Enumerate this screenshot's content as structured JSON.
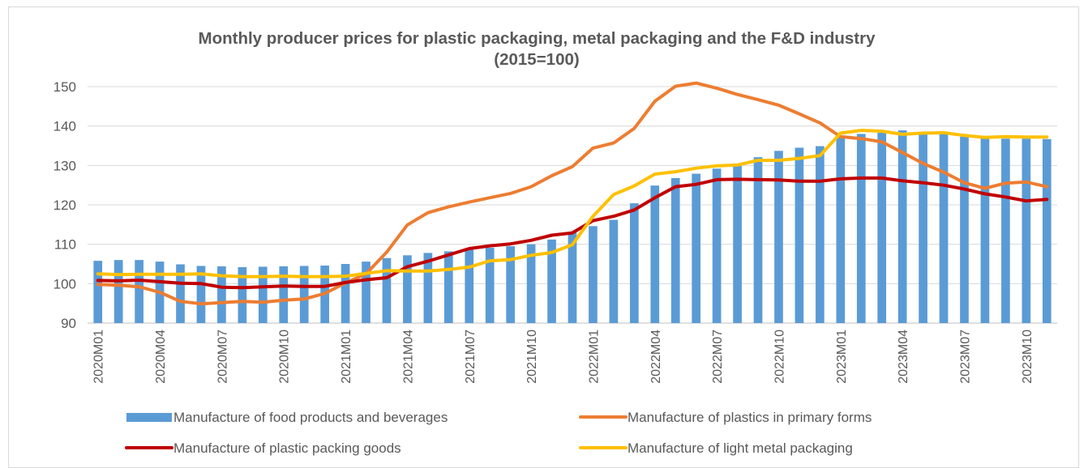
{
  "chart_data": {
    "type": "bar",
    "title": "Monthly producer prices for plastic packaging, metal packaging and the F&D industry",
    "subtitle": "(2015=100)",
    "ylim": [
      90,
      150
    ],
    "yticks": [
      90,
      100,
      110,
      120,
      130,
      140,
      150
    ],
    "grid": true,
    "legend_position": "bottom",
    "x": [
      "2020M01",
      "2020M02",
      "2020M03",
      "2020M04",
      "2020M05",
      "2020M06",
      "2020M07",
      "2020M08",
      "2020M09",
      "2020M10",
      "2020M11",
      "2020M12",
      "2021M01",
      "2021M02",
      "2021M03",
      "2021M04",
      "2021M05",
      "2021M06",
      "2021M07",
      "2021M08",
      "2021M09",
      "2021M10",
      "2021M11",
      "2021M12",
      "2022M01",
      "2022M02",
      "2022M03",
      "2022M04",
      "2022M05",
      "2022M06",
      "2022M07",
      "2022M08",
      "2022M09",
      "2022M10",
      "2022M11",
      "2022M12",
      "2023M01",
      "2023M02",
      "2023M03",
      "2023M04",
      "2023M05",
      "2023M06",
      "2023M07",
      "2023M08",
      "2023M09",
      "2023M10",
      "2023M11"
    ],
    "x_tick_labels": [
      "2020M01",
      "2020M04",
      "2020M07",
      "2020M10",
      "2021M01",
      "2021M04",
      "2021M07",
      "2021M10",
      "2022M01",
      "2022M04",
      "2022M07",
      "2022M10",
      "2023M01",
      "2023M04",
      "2023M07",
      "2023M10"
    ],
    "series": [
      {
        "name": "Manufacture of food products and beverages",
        "kind": "bar",
        "color": "#5b9bd5",
        "values": [
          105.8,
          106.0,
          106.0,
          105.6,
          104.9,
          104.5,
          104.4,
          104.2,
          104.3,
          104.4,
          104.5,
          104.6,
          105.0,
          105.6,
          106.5,
          107.2,
          107.8,
          108.2,
          108.6,
          109.1,
          109.5,
          110.0,
          111.2,
          113.0,
          114.6,
          116.2,
          120.4,
          124.9,
          126.8,
          127.9,
          129.2,
          130.5,
          132.1,
          133.7,
          134.5,
          134.9,
          137.4,
          138.0,
          138.3,
          138.9,
          138.1,
          138.2,
          137.3,
          136.9,
          136.8,
          136.8,
          136.7
        ]
      },
      {
        "name": "Manufacture of plastics in primary forms",
        "kind": "line",
        "color": "#ed7d31",
        "values": [
          99.8,
          99.6,
          99.2,
          97.8,
          95.5,
          94.9,
          95.2,
          95.5,
          95.3,
          95.8,
          96.1,
          97.5,
          100.2,
          102.5,
          108.0,
          114.9,
          118.0,
          119.5,
          120.7,
          121.8,
          122.9,
          124.6,
          127.4,
          129.7,
          134.4,
          135.7,
          139.4,
          146.3,
          150.1,
          150.9,
          149.6,
          148.0,
          146.7,
          145.3,
          143.1,
          140.8,
          137.3,
          136.8,
          136.0,
          133.3,
          130.5,
          128.3,
          125.6,
          124.2,
          125.5,
          125.8,
          124.6
        ]
      },
      {
        "name": "Manufacture of plastic packing goods",
        "kind": "line",
        "color": "#c00000",
        "values": [
          100.8,
          100.7,
          100.9,
          100.5,
          100.1,
          100.0,
          99.1,
          99.0,
          99.2,
          99.4,
          99.3,
          99.3,
          100.3,
          101.0,
          101.5,
          104.3,
          105.7,
          107.3,
          108.9,
          109.6,
          110.1,
          111.0,
          112.3,
          112.9,
          116.0,
          117.1,
          118.7,
          121.8,
          124.6,
          125.2,
          126.4,
          126.5,
          126.4,
          126.3,
          126.0,
          126.0,
          126.6,
          126.8,
          126.8,
          126.1,
          125.6,
          125.0,
          124.0,
          122.8,
          122.0,
          121.0,
          121.4
        ]
      },
      {
        "name": "Manufacture of light metal packaging",
        "kind": "line",
        "color": "#ffc000",
        "values": [
          102.5,
          102.3,
          102.4,
          102.4,
          102.4,
          102.5,
          102.0,
          101.8,
          101.8,
          101.9,
          101.8,
          101.8,
          101.9,
          102.6,
          103.3,
          103.2,
          103.2,
          103.6,
          104.2,
          105.8,
          106.1,
          107.2,
          107.9,
          109.9,
          117.1,
          122.6,
          124.8,
          127.8,
          128.4,
          129.3,
          129.9,
          130.1,
          131.3,
          131.3,
          131.8,
          132.5,
          138.2,
          138.9,
          138.7,
          137.9,
          138.2,
          138.3,
          137.6,
          137.1,
          137.3,
          137.2,
          137.2
        ]
      }
    ]
  }
}
